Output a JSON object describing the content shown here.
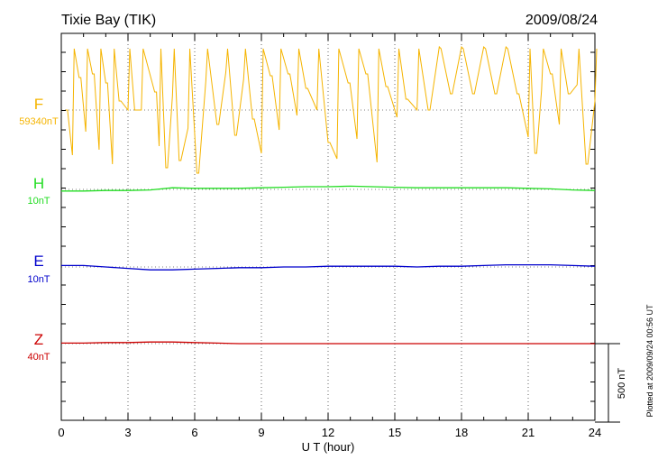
{
  "chart_data": {
    "type": "line",
    "title": "Tixie Bay (TIK)",
    "date": "2009/08/24",
    "xlabel": "U T (hour)",
    "xlim": [
      0,
      24
    ],
    "xticks": [
      "0",
      "3",
      "6",
      "9",
      "12",
      "15",
      "18",
      "21",
      "24"
    ],
    "grid": true,
    "scale_bar_label": "500 nT",
    "plotted_note": "Plotted at 2009/09/24 00:56 UT",
    "channels": [
      {
        "name": "F",
        "scale": "59340nT",
        "color": "#f5b400"
      },
      {
        "name": "H",
        "scale": "10nT",
        "color": "#22dd22"
      },
      {
        "name": "E",
        "scale": "10nT",
        "color": "#0000cc"
      },
      {
        "name": "Z",
        "scale": "40nT",
        "color": "#cc0000"
      }
    ],
    "series": [
      {
        "name": "H",
        "x": [
          0,
          1,
          2,
          3,
          4,
          5,
          6,
          7,
          8,
          9,
          10,
          11,
          12,
          13,
          14,
          15,
          16,
          17,
          18,
          19,
          20,
          21,
          22,
          23,
          24
        ],
        "values": [
          -0.3,
          -0.3,
          -0.2,
          -0.2,
          -0.1,
          0.3,
          0.2,
          0.2,
          0.2,
          0.3,
          0.4,
          0.5,
          0.5,
          0.6,
          0.5,
          0.4,
          0.3,
          0.3,
          0.3,
          0.3,
          0.3,
          0.2,
          0.1,
          -0.1,
          -0.2
        ]
      },
      {
        "name": "E",
        "x": [
          0,
          1,
          2,
          3,
          4,
          5,
          6,
          7,
          8,
          9,
          10,
          11,
          12,
          13,
          14,
          15,
          16,
          17,
          18,
          19,
          20,
          21,
          22,
          23,
          24
        ],
        "values": [
          0.2,
          0.2,
          0.0,
          -0.2,
          -0.4,
          -0.4,
          -0.3,
          -0.2,
          -0.1,
          -0.1,
          0.0,
          0.0,
          0.1,
          0.1,
          0.1,
          0.1,
          0.0,
          0.1,
          0.1,
          0.2,
          0.3,
          0.3,
          0.3,
          0.2,
          0.1
        ]
      },
      {
        "name": "Z",
        "x": [
          0,
          1,
          2,
          3,
          4,
          5,
          6,
          7,
          8,
          9,
          10,
          11,
          12,
          13,
          14,
          15,
          16,
          17,
          18,
          19,
          20,
          21,
          22,
          23,
          24
        ],
        "values": [
          0.1,
          0.1,
          0.2,
          0.2,
          0.3,
          0.3,
          0.2,
          0.1,
          0.0,
          0.0,
          0.0,
          0.0,
          0.0,
          0.0,
          0.0,
          0.0,
          0.0,
          0.0,
          0.0,
          0.0,
          0.0,
          0.0,
          0.0,
          0.0,
          0.0
        ]
      },
      {
        "name": "F",
        "x": [
          0.2,
          0.5,
          0.8,
          1.1,
          1.4,
          1.7,
          2.0,
          2.3,
          2.6,
          3.0,
          3.3,
          3.6,
          4.2,
          4.4,
          4.7,
          5.0,
          5.3,
          5.7,
          6.1,
          6.5,
          7.0,
          7.4,
          7.8,
          8.2,
          8.6,
          9.0,
          9.4,
          9.8,
          10.2,
          10.6,
          11.0,
          11.5,
          12.0,
          12.4,
          12.9,
          13.3,
          13.7,
          14.2,
          14.6,
          15.1,
          15.5,
          16.0,
          16.5,
          17.0,
          17.5,
          18.0,
          18.5,
          19.0,
          19.5,
          20.0,
          20.5,
          21.0,
          21.3,
          21.6,
          22.0,
          22.4,
          22.8,
          23.2,
          23.6,
          24.0
        ],
        "values": [
          0,
          -2.5,
          1.8,
          -1.2,
          2.0,
          -2.2,
          1.5,
          -3.0,
          0.5,
          0,
          0,
          0,
          1.0,
          -2.0,
          -3.2,
          0.8,
          -2.8,
          -1.0,
          -3.5,
          1.6,
          -0.8,
          2.1,
          -1.4,
          1.7,
          -0.5,
          -2.4,
          1.9,
          -1.1,
          2.0,
          -0.3,
          1.2,
          0,
          -1.8,
          -2.7,
          1.5,
          -1.6,
          2.0,
          -2.9,
          1.3,
          -0.4,
          0.6,
          0,
          0,
          4.3,
          0.9,
          4.3,
          0.9,
          4.3,
          0.9,
          4.3,
          0.9,
          -1.5,
          -2.4,
          1.1,
          2.0,
          -0.8,
          0.9,
          1.4,
          -3.0,
          0.5
        ]
      }
    ]
  }
}
